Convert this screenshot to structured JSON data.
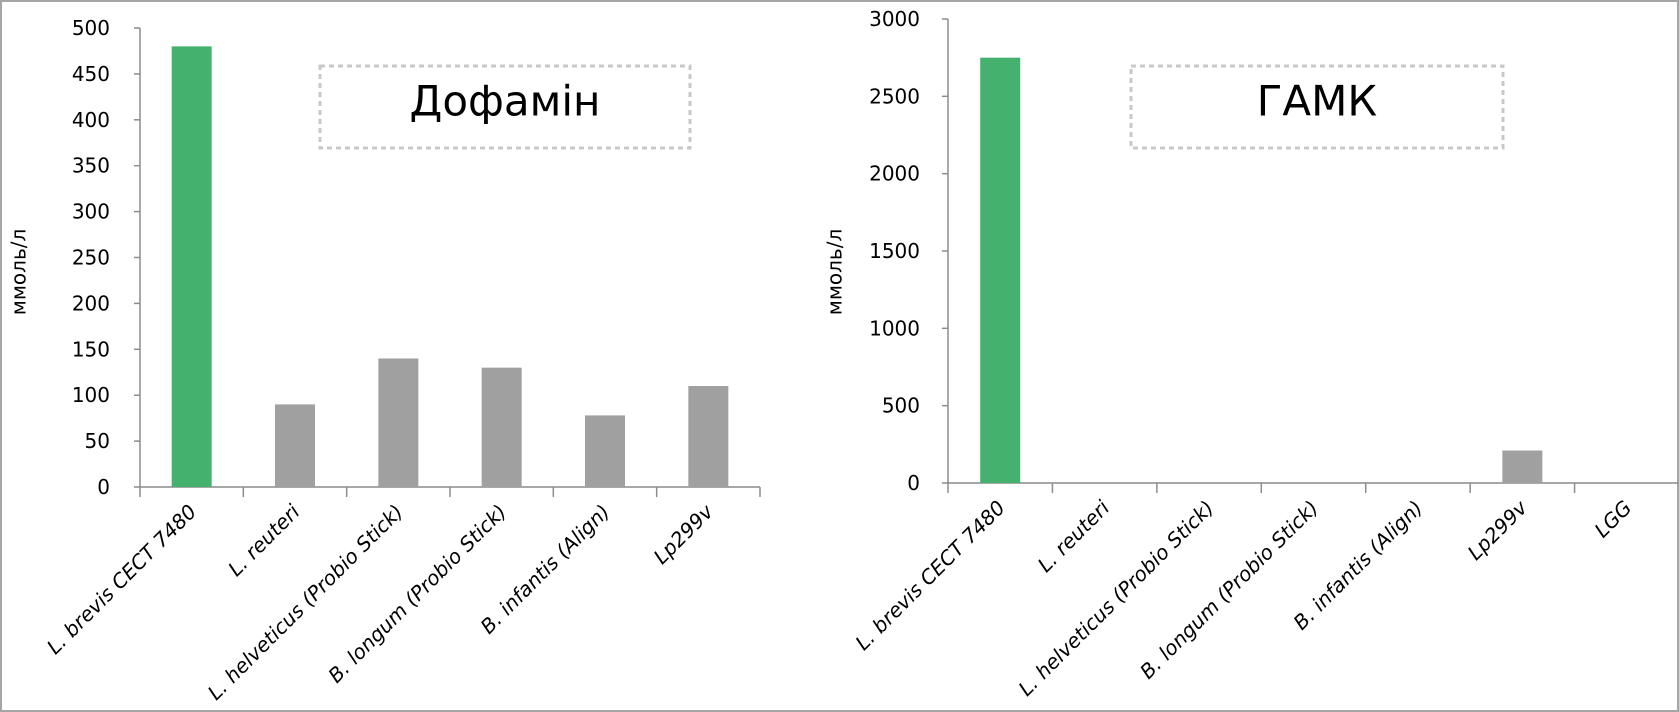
{
  "chart_data": [
    {
      "type": "bar",
      "title": "Дофамін",
      "ylabel": "ммоль/л",
      "xlabel": "",
      "ylim": [
        0,
        500
      ],
      "yticks": [
        0,
        50,
        100,
        150,
        200,
        250,
        300,
        350,
        400,
        450,
        500
      ],
      "categories": [
        "L. brevis CECT 7480",
        "L. reuteri",
        "L. helveticus (Probio Stick)",
        "B. longum (Probio Stick)",
        "B. infantis (Align)",
        "Lp299v"
      ],
      "values": [
        480,
        90,
        140,
        130,
        78,
        110
      ],
      "bar_colors": [
        "#44b26e",
        "#a0a0a0",
        "#a0a0a0",
        "#a0a0a0",
        "#a0a0a0",
        "#a0a0a0"
      ],
      "grid": false,
      "legend": "none"
    },
    {
      "type": "bar",
      "title": "ГАМК",
      "ylabel": "ммоль/л",
      "xlabel": "",
      "ylim": [
        0,
        3000
      ],
      "yticks": [
        0,
        500,
        1000,
        1500,
        2000,
        2500,
        3000
      ],
      "categories": [
        "L. brevis CECT 7480",
        "L. reuteri",
        "L. helveticus (Probio Stick)",
        "B. longum (Probio Stick)",
        "B. infantis (Align)",
        "Lp299v",
        "LGG"
      ],
      "values": [
        2750,
        0,
        0,
        0,
        0,
        210,
        0
      ],
      "bar_colors": [
        "#44b26e",
        "#a0a0a0",
        "#a0a0a0",
        "#a0a0a0",
        "#a0a0a0",
        "#a0a0a0",
        "#a0a0a0"
      ],
      "grid": false,
      "legend": "none"
    }
  ],
  "colors": {
    "highlight_bar": "#44b26e",
    "other_bars": "#a0a0a0",
    "axis": "#8c8c8c",
    "title_box_border": "#c8c8c8"
  }
}
